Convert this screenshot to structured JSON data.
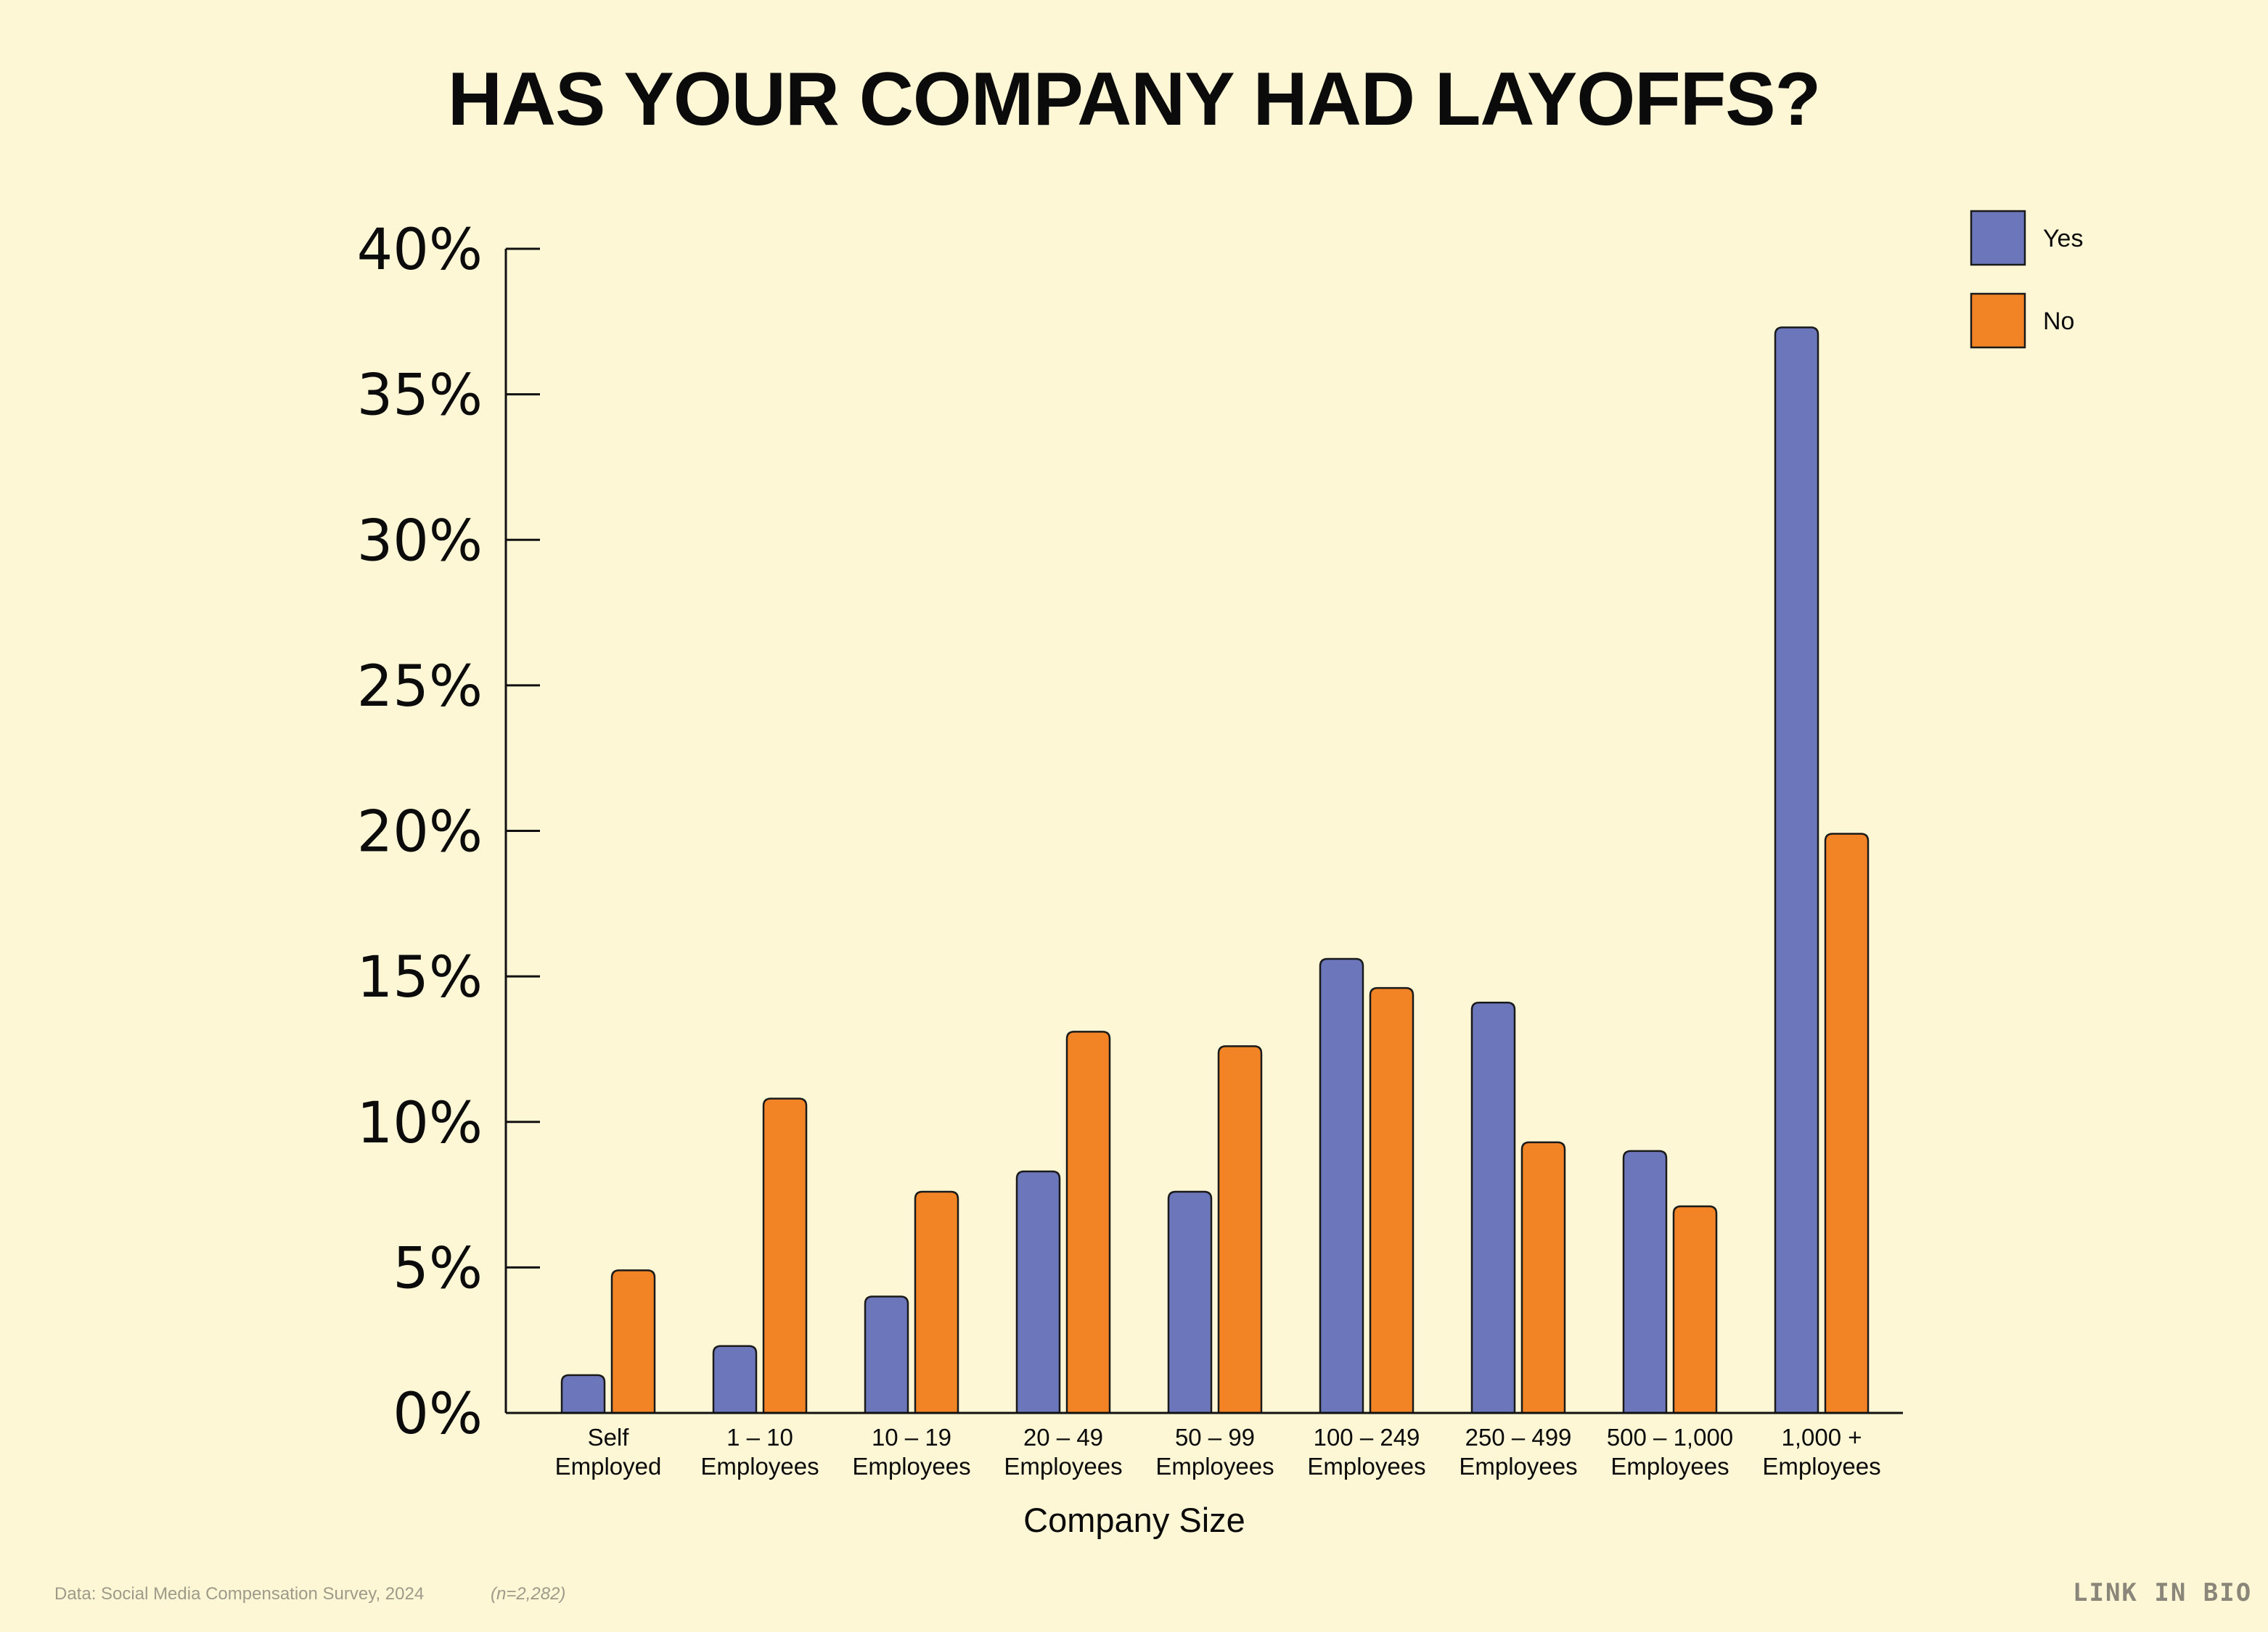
{
  "chart_data": {
    "type": "bar",
    "title": "HAS YOUR COMPANY HAD LAYOFFS?",
    "xlabel": "Company Size",
    "ylabel": "",
    "ylim": [
      0,
      40
    ],
    "yticks": [
      "0%",
      "5%",
      "10%",
      "15%",
      "20%",
      "25%",
      "30%",
      "35%",
      "40%"
    ],
    "categories": [
      [
        "Self",
        "Employed"
      ],
      [
        "1 – 10",
        "Employees"
      ],
      [
        "10 – 19",
        "Employees"
      ],
      [
        "20 – 49",
        "Employees"
      ],
      [
        "50 – 99",
        "Employees"
      ],
      [
        "100 – 249",
        "Employees"
      ],
      [
        "250 – 499",
        "Employees"
      ],
      [
        "500 – 1,000",
        "Employees"
      ],
      [
        "1,000 +",
        "Employees"
      ]
    ],
    "series": [
      {
        "name": "Yes",
        "color": "#6C76BA",
        "values": [
          1.3,
          2.3,
          4.0,
          8.3,
          7.6,
          15.6,
          14.1,
          9.0,
          37.3
        ]
      },
      {
        "name": "No",
        "color": "#F28426",
        "values": [
          4.9,
          10.8,
          7.6,
          13.1,
          12.6,
          14.6,
          9.3,
          7.1,
          19.9
        ]
      }
    ],
    "legend_position": "top-right",
    "grid": false
  },
  "footer": {
    "source": "Data: Social Media Compensation Survey, 2024",
    "sample": "(n=2,282)",
    "brand": "LINK IN BIO"
  }
}
